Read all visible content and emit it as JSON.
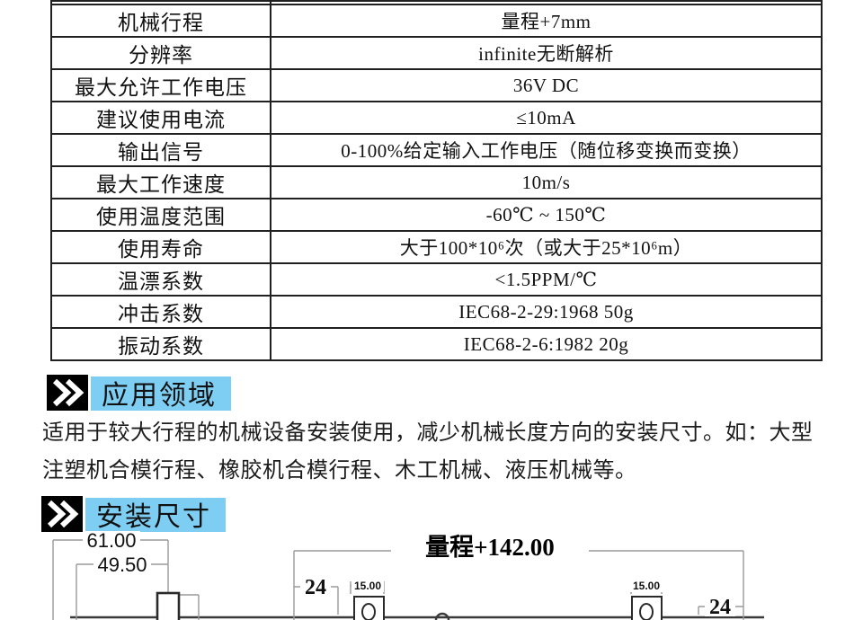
{
  "table": {
    "rows": [
      {
        "label": "机械行程",
        "value": "量程+7mm"
      },
      {
        "label": "分辨率",
        "value": "infinite无断解析"
      },
      {
        "label": "最大允许工作电压",
        "value": "36V DC"
      },
      {
        "label": "建议使用电流",
        "value": "≤10mA"
      },
      {
        "label": "输出信号",
        "value": "0-100%给定输入工作电压（随位移变换而变换）"
      },
      {
        "label": "最大工作速度",
        "value": "10m/s"
      },
      {
        "label": "使用温度范围",
        "value": "-60℃ ~ 150℃"
      },
      {
        "label": "使用寿命",
        "value": "大于100*10⁶次（或大于25*10⁶m）"
      },
      {
        "label": "温漂系数",
        "value": "<1.5PPM/℃"
      },
      {
        "label": "冲击系数",
        "value": "IEC68-2-29:1968 50g"
      },
      {
        "label": "振动系数",
        "value": "IEC68-2-6:1982 20g"
      }
    ]
  },
  "sections": {
    "application": {
      "title": "应用领域",
      "body": "适用于较大行程的机械设备安装使用，减少机械长度方向的安装尺寸。如：大型注塑机合模行程、橡胶机合模行程、木工机械、液压机械等。"
    },
    "installation": {
      "title": "安装尺寸"
    }
  },
  "drawing": {
    "dim_61": "61.00",
    "dim_49_5": "49.50",
    "dim_range": "量程+142.00",
    "dim_24_left": "24",
    "dim_24_right": "24",
    "dim_15_left": "15.00",
    "dim_15_right": "15.00"
  },
  "colors": {
    "header_highlight": "#7ECEF4",
    "header_block": "#000000",
    "table_border": "#202020",
    "drawing_line_gray": "#9a9a9a",
    "drawing_line_dark": "#3a3a3a"
  }
}
